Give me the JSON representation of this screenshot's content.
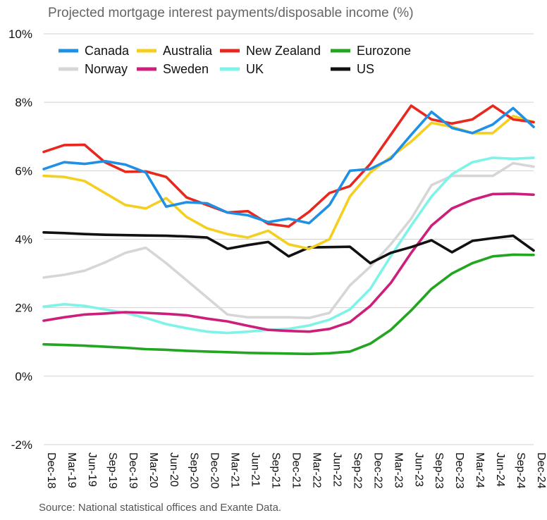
{
  "title": "Projected mortgage interest payments/disposable income (%)",
  "source": "Source: National statistical offices and Exante Data.",
  "chart_data": {
    "type": "line",
    "title": "Projected mortgage interest payments/disposable income (%)",
    "xlabel": "",
    "ylabel": "",
    "ylim": [
      -2,
      10
    ],
    "y_ticks": [
      "-2%",
      "0%",
      "2%",
      "4%",
      "6%",
      "8%",
      "10%"
    ],
    "y_tick_values": [
      -2,
      0,
      2,
      4,
      6,
      8,
      10
    ],
    "grid": "horizontal",
    "legend_position": "top-left",
    "categories": [
      "Dec-18",
      "Mar-19",
      "Jun-19",
      "Sep-19",
      "Dec-19",
      "Mar-20",
      "Jun-20",
      "Sep-20",
      "Dec-20",
      "Mar-21",
      "Jun-21",
      "Sep-21",
      "Dec-21",
      "Mar-22",
      "Jun-22",
      "Sep-22",
      "Dec-22",
      "Mar-23",
      "Jun-23",
      "Sep-23",
      "Dec-23",
      "Mar-24",
      "Jun-24",
      "Sep-24",
      "Dec-24"
    ],
    "x_index": [
      0,
      0.5,
      1,
      1.5,
      2,
      2.5,
      3,
      3.5,
      4,
      4.5,
      5,
      5.5,
      6,
      6.5,
      7,
      7.5,
      8,
      8.5,
      9,
      9.5,
      10,
      10.5,
      11,
      11.5,
      12,
      12.5,
      13,
      13.5,
      14,
      14.5,
      15,
      15.5,
      16,
      16.5,
      17,
      17.5,
      18,
      18.5,
      19,
      19.5,
      20,
      20.5,
      21,
      21.5,
      22,
      22.5,
      23,
      23.5,
      24
    ],
    "series": [
      {
        "name": "Canada",
        "color": "#1e90e6",
        "values": [
          6.05,
          6.25,
          6.2,
          6.28,
          6.18,
          5.95,
          4.95,
          5.08,
          5.05,
          4.78,
          4.7,
          4.5,
          4.6,
          4.47,
          5.0,
          6.0,
          6.05,
          6.35,
          7.05,
          7.72,
          7.25,
          7.1,
          7.35,
          7.83,
          7.28
        ]
      },
      {
        "name": "Australia",
        "color": "#f5cf1f",
        "values": [
          5.85,
          5.82,
          5.7,
          5.35,
          5.0,
          4.9,
          5.2,
          4.65,
          4.32,
          4.15,
          4.05,
          4.25,
          3.85,
          3.72,
          4.0,
          5.25,
          5.95,
          6.4,
          6.85,
          7.4,
          7.28,
          7.1,
          7.1,
          7.6,
          7.42
        ]
      },
      {
        "name": "New Zealand",
        "color": "#e8281e",
        "values": [
          6.55,
          6.75,
          6.76,
          6.25,
          5.97,
          5.98,
          5.82,
          5.22,
          5.0,
          4.78,
          4.82,
          4.45,
          4.37,
          4.8,
          5.35,
          5.55,
          6.2,
          7.05,
          7.9,
          7.5,
          7.38,
          7.5,
          7.9,
          7.5,
          7.42
        ]
      },
      {
        "name": "Eurozone",
        "color": "#22a521",
        "values": [
          0.93,
          0.91,
          0.89,
          0.86,
          0.83,
          0.79,
          0.77,
          0.74,
          0.72,
          0.7,
          0.68,
          0.67,
          0.66,
          0.65,
          0.67,
          0.72,
          0.95,
          1.35,
          1.92,
          2.55,
          3.0,
          3.3,
          3.5,
          3.55,
          3.54
        ]
      },
      {
        "name": "Norway",
        "color": "#d6d6d6",
        "values": [
          2.88,
          2.96,
          3.08,
          3.32,
          3.6,
          3.75,
          3.3,
          2.8,
          2.3,
          1.8,
          1.72,
          1.72,
          1.72,
          1.7,
          1.85,
          2.65,
          3.2,
          3.85,
          4.6,
          5.58,
          5.85,
          5.85,
          5.85,
          6.22,
          6.12
        ]
      },
      {
        "name": "Sweden",
        "color": "#cc1f7c",
        "values": [
          1.62,
          1.72,
          1.8,
          1.83,
          1.87,
          1.85,
          1.82,
          1.78,
          1.68,
          1.6,
          1.47,
          1.35,
          1.32,
          1.3,
          1.38,
          1.58,
          2.05,
          2.72,
          3.6,
          4.4,
          4.9,
          5.15,
          5.32,
          5.33,
          5.3
        ]
      },
      {
        "name": "UK",
        "color": "#7ef3e8",
        "values": [
          2.03,
          2.1,
          2.05,
          1.95,
          1.85,
          1.7,
          1.52,
          1.4,
          1.3,
          1.26,
          1.3,
          1.35,
          1.38,
          1.48,
          1.65,
          1.95,
          2.55,
          3.5,
          4.4,
          5.25,
          5.9,
          6.25,
          6.38,
          6.35,
          6.38
        ]
      },
      {
        "name": "US",
        "color": "#111111",
        "values": [
          4.2,
          4.18,
          4.15,
          4.13,
          4.12,
          4.11,
          4.1,
          4.08,
          4.05,
          3.72,
          3.83,
          3.92,
          3.5,
          3.76,
          3.77,
          3.78,
          3.3,
          3.6,
          3.77,
          3.97,
          3.62,
          3.95,
          4.03,
          4.1,
          3.67
        ]
      }
    ]
  }
}
